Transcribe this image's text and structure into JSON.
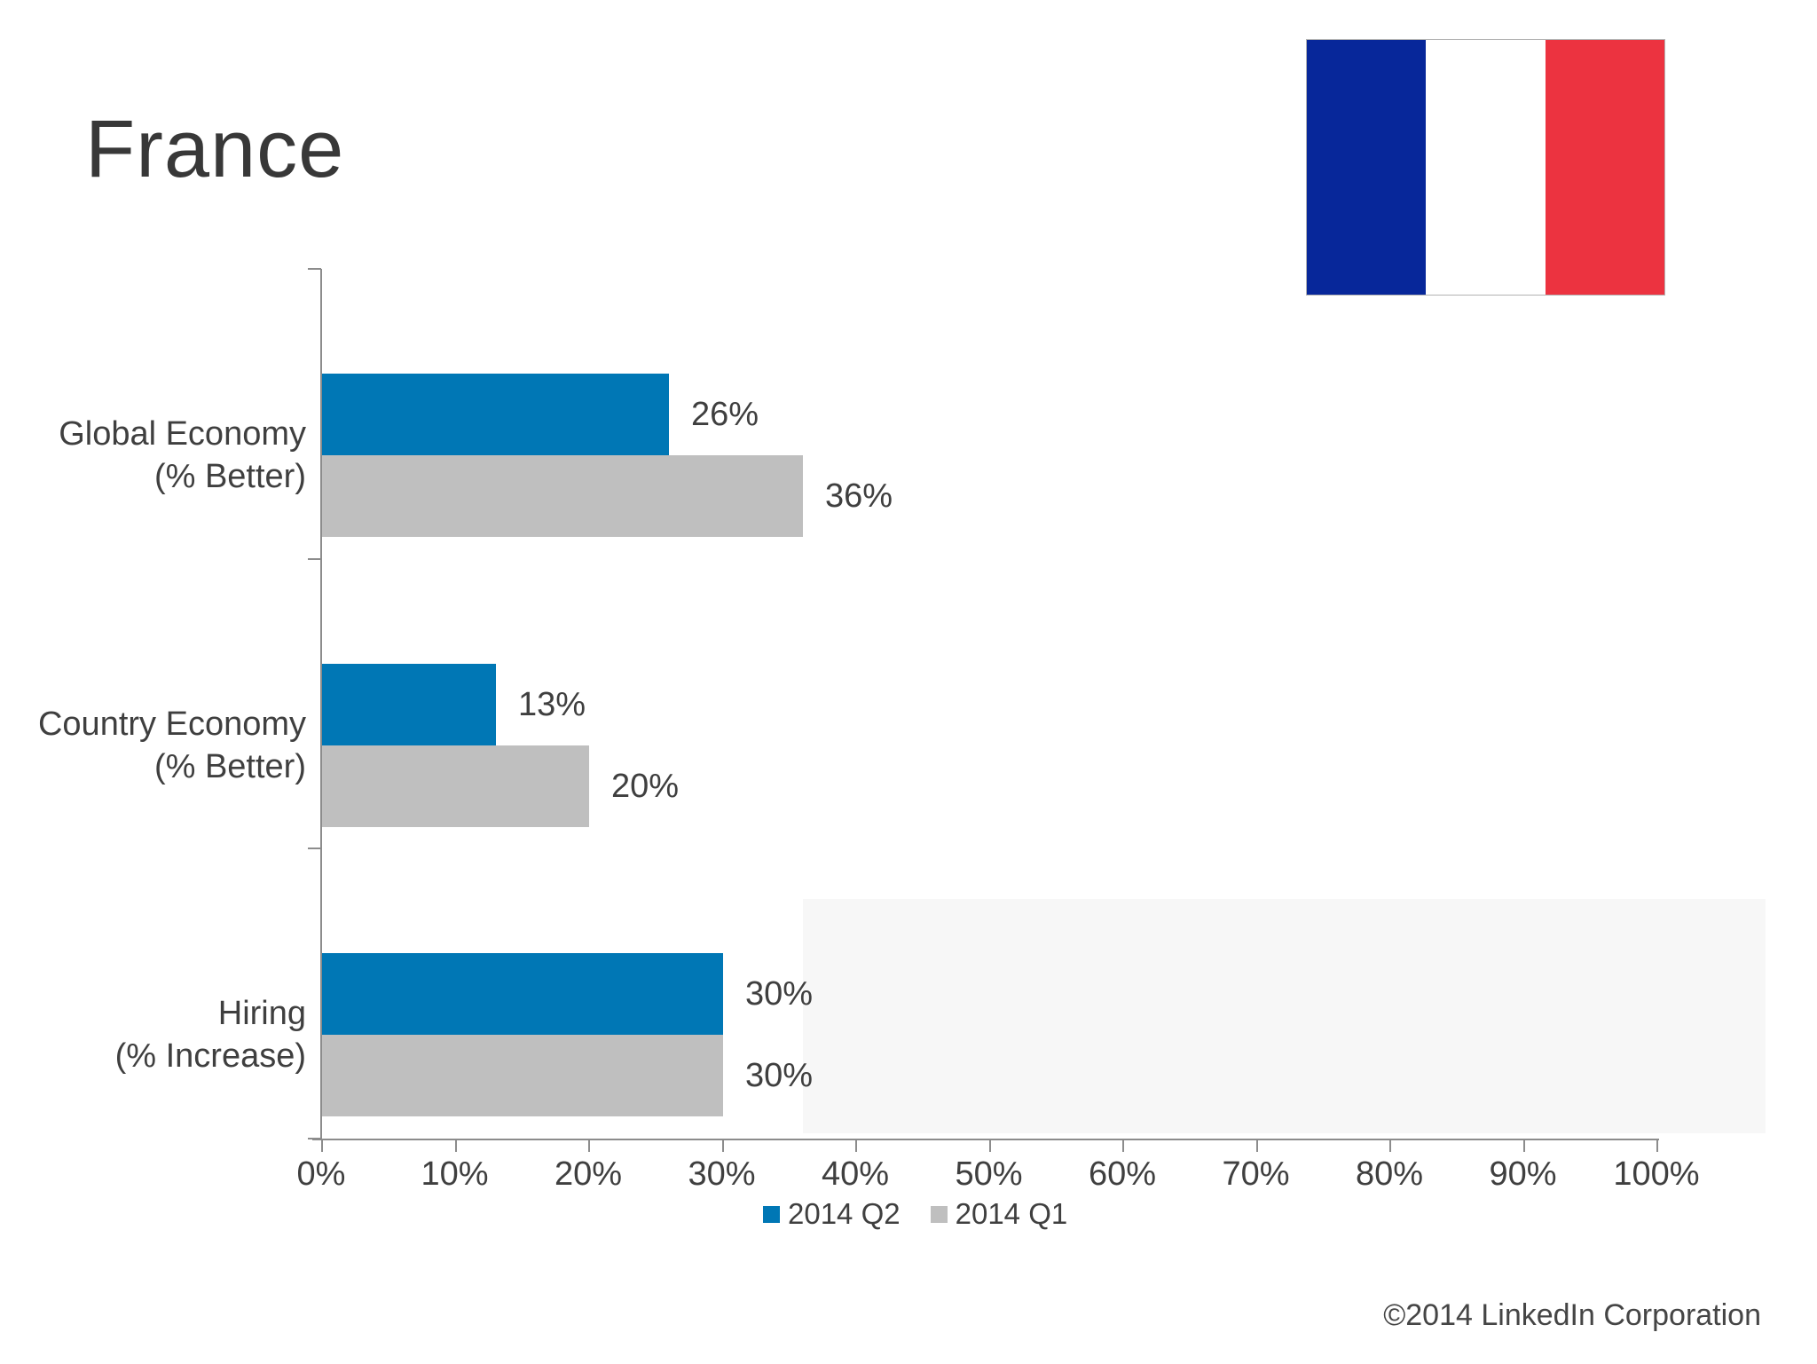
{
  "page": {
    "title": "France",
    "footer": "©2014 LinkedIn Corporation"
  },
  "flag": {
    "country": "France",
    "band_colors": [
      "#07279A",
      "#FFFFFF",
      "#EC3340"
    ],
    "border_color": "#B3B3B3"
  },
  "chart_data": {
    "type": "bar",
    "orientation": "horizontal",
    "title": "",
    "xlabel": "",
    "ylabel": "",
    "xlim": [
      0,
      100
    ],
    "grid": false,
    "legend_position": "bottom",
    "categories": [
      "Global Economy\n(% Better)",
      "Country Economy\n(% Better)",
      "Hiring\n(% Increase)"
    ],
    "x_tick_labels": [
      "0%",
      "10%",
      "20%",
      "30%",
      "40%",
      "50%",
      "60%",
      "70%",
      "80%",
      "90%",
      "100%"
    ],
    "series": [
      {
        "name": "2014 Q2",
        "color": "#0077B5",
        "values": [
          26,
          13,
          30
        ],
        "value_labels": [
          "26%",
          "13%",
          "30%"
        ]
      },
      {
        "name": "2014 Q1",
        "color": "#BFBFBF",
        "values": [
          36,
          20,
          30
        ],
        "value_labels": [
          "36%",
          "20%",
          "30%"
        ]
      }
    ],
    "colors": {
      "axis": "#8C8C8C",
      "text": "#3F3F3F",
      "background_tint": "#F7F7F7"
    }
  }
}
